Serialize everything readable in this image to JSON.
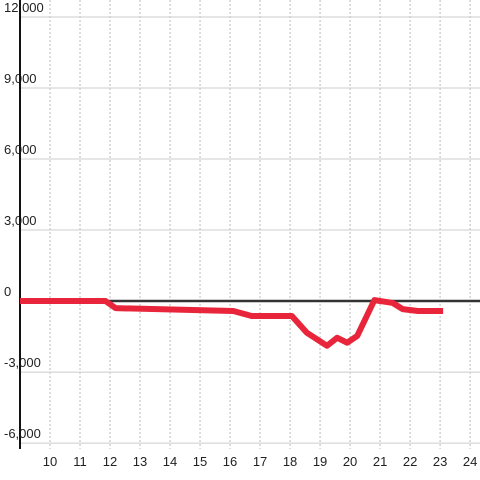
{
  "chart_data": {
    "type": "line",
    "x": [
      9,
      11.85,
      12.19,
      16.11,
      16.72,
      18.06,
      18.56,
      19.23,
      19.57,
      19.9,
      20.24,
      20.81,
      21.42,
      21.75,
      22.26,
      23.1
    ],
    "series": [
      {
        "color": "#e8253a",
        "values": [
          0,
          0,
          -300,
          -420,
          -630,
          -630,
          -1340,
          -1890,
          -1550,
          -1760,
          -1470,
          40,
          -80,
          -340,
          -420,
          -420
        ]
      }
    ],
    "xlim": [
      9,
      24.33
    ],
    "xticks": [
      10,
      11,
      12,
      13,
      14,
      15,
      16,
      17,
      18,
      19,
      20,
      21,
      22,
      23,
      24
    ],
    "ylim": [
      -6250,
      12000
    ],
    "yticks": [
      {
        "value": -6000,
        "label": "-6,000"
      },
      {
        "value": -3000,
        "label": "-3,000"
      },
      0,
      {
        "value": 3000,
        "label": "3,000"
      },
      {
        "value": 6000,
        "label": "6,000"
      },
      {
        "value": 9000,
        "label": "9,000"
      },
      {
        "value": 12000,
        "label": "12,000"
      }
    ],
    "grid": true
  }
}
